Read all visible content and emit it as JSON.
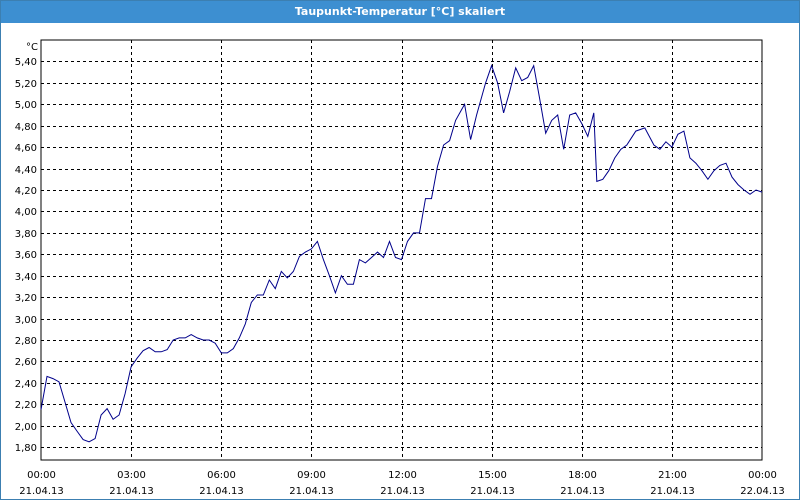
{
  "window": {
    "title": "Taupunkt-Temperatur [°C] skaliert"
  },
  "chart_data": {
    "type": "line",
    "title": "Taupunkt-Temperatur [°C] skaliert",
    "ylabel": "°C",
    "xlabel": "",
    "ylim": [
      1.68,
      5.6
    ],
    "xlim": [
      0,
      24
    ],
    "grid": true,
    "line_color": "#00008b",
    "y_ticks": [
      "1,80",
      "2,00",
      "2,20",
      "2,40",
      "2,60",
      "2,80",
      "3,00",
      "3,20",
      "3,40",
      "3,60",
      "3,80",
      "4,00",
      "4,20",
      "4,40",
      "4,60",
      "4,80",
      "5,00",
      "5,20",
      "5,40"
    ],
    "y_tick_values": [
      1.8,
      2.0,
      2.2,
      2.4,
      2.6,
      2.8,
      3.0,
      3.2,
      3.4,
      3.6,
      3.8,
      4.0,
      4.2,
      4.4,
      4.6,
      4.8,
      5.0,
      5.2,
      5.4
    ],
    "x_ticks": [
      {
        "time": "00:00",
        "date": "21.04.13",
        "hour": 0
      },
      {
        "time": "03:00",
        "date": "21.04.13",
        "hour": 3
      },
      {
        "time": "06:00",
        "date": "21.04.13",
        "hour": 6
      },
      {
        "time": "09:00",
        "date": "21.04.13",
        "hour": 9
      },
      {
        "time": "12:00",
        "date": "21.04.13",
        "hour": 12
      },
      {
        "time": "15:00",
        "date": "21.04.13",
        "hour": 15
      },
      {
        "time": "18:00",
        "date": "21.04.13",
        "hour": 18
      },
      {
        "time": "21:00",
        "date": "21.04.13",
        "hour": 21
      },
      {
        "time": "00:00",
        "date": "22.04.13",
        "hour": 24
      }
    ],
    "series": [
      {
        "values": [
          [
            0.0,
            2.15
          ],
          [
            0.2,
            2.46
          ],
          [
            0.4,
            2.44
          ],
          [
            0.6,
            2.41
          ],
          [
            0.8,
            2.22
          ],
          [
            1.0,
            2.03
          ],
          [
            1.2,
            1.95
          ],
          [
            1.4,
            1.87
          ],
          [
            1.6,
            1.85
          ],
          [
            1.8,
            1.88
          ],
          [
            2.0,
            2.1
          ],
          [
            2.2,
            2.16
          ],
          [
            2.4,
            2.06
          ],
          [
            2.6,
            2.1
          ],
          [
            2.8,
            2.3
          ],
          [
            3.0,
            2.55
          ],
          [
            3.2,
            2.63
          ],
          [
            3.4,
            2.7
          ],
          [
            3.6,
            2.73
          ],
          [
            3.8,
            2.69
          ],
          [
            4.0,
            2.69
          ],
          [
            4.2,
            2.71
          ],
          [
            4.4,
            2.8
          ],
          [
            4.6,
            2.82
          ],
          [
            4.8,
            2.82
          ],
          [
            5.0,
            2.85
          ],
          [
            5.2,
            2.82
          ],
          [
            5.4,
            2.8
          ],
          [
            5.6,
            2.8
          ],
          [
            5.8,
            2.77
          ],
          [
            6.0,
            2.68
          ],
          [
            6.2,
            2.68
          ],
          [
            6.4,
            2.72
          ],
          [
            6.6,
            2.82
          ],
          [
            6.8,
            2.95
          ],
          [
            7.0,
            3.15
          ],
          [
            7.2,
            3.22
          ],
          [
            7.4,
            3.22
          ],
          [
            7.6,
            3.36
          ],
          [
            7.8,
            3.28
          ],
          [
            8.0,
            3.44
          ],
          [
            8.2,
            3.38
          ],
          [
            8.4,
            3.44
          ],
          [
            8.6,
            3.58
          ],
          [
            8.8,
            3.62
          ],
          [
            9.0,
            3.65
          ],
          [
            9.2,
            3.72
          ],
          [
            9.4,
            3.55
          ],
          [
            9.6,
            3.4
          ],
          [
            9.8,
            3.24
          ],
          [
            10.0,
            3.4
          ],
          [
            10.2,
            3.32
          ],
          [
            10.4,
            3.32
          ],
          [
            10.6,
            3.55
          ],
          [
            10.8,
            3.52
          ],
          [
            11.0,
            3.57
          ],
          [
            11.2,
            3.62
          ],
          [
            11.4,
            3.57
          ],
          [
            11.6,
            3.72
          ],
          [
            11.8,
            3.57
          ],
          [
            12.0,
            3.55
          ],
          [
            12.2,
            3.72
          ],
          [
            12.4,
            3.8
          ],
          [
            12.6,
            3.8
          ],
          [
            12.8,
            4.12
          ],
          [
            13.0,
            4.12
          ],
          [
            13.2,
            4.42
          ],
          [
            13.4,
            4.62
          ],
          [
            13.6,
            4.66
          ],
          [
            13.8,
            4.85
          ],
          [
            14.0,
            4.95
          ],
          [
            14.1,
            5.0
          ],
          [
            14.3,
            4.67
          ],
          [
            14.5,
            4.9
          ],
          [
            14.8,
            5.2
          ],
          [
            15.0,
            5.36
          ],
          [
            15.2,
            5.2
          ],
          [
            15.4,
            4.92
          ],
          [
            15.6,
            5.12
          ],
          [
            15.8,
            5.34
          ],
          [
            16.0,
            5.22
          ],
          [
            16.2,
            5.25
          ],
          [
            16.4,
            5.36
          ],
          [
            16.6,
            5.05
          ],
          [
            16.8,
            4.73
          ],
          [
            17.0,
            4.85
          ],
          [
            17.2,
            4.9
          ],
          [
            17.4,
            4.58
          ],
          [
            17.6,
            4.9
          ],
          [
            17.8,
            4.92
          ],
          [
            18.0,
            4.82
          ],
          [
            18.2,
            4.7
          ],
          [
            18.4,
            4.92
          ],
          [
            18.5,
            4.28
          ],
          [
            18.7,
            4.3
          ],
          [
            18.9,
            4.38
          ],
          [
            19.1,
            4.5
          ],
          [
            19.3,
            4.58
          ],
          [
            19.5,
            4.62
          ],
          [
            19.8,
            4.75
          ],
          [
            20.1,
            4.78
          ],
          [
            20.4,
            4.62
          ],
          [
            20.6,
            4.58
          ],
          [
            20.8,
            4.65
          ],
          [
            21.0,
            4.6
          ],
          [
            21.2,
            4.72
          ],
          [
            21.4,
            4.75
          ],
          [
            21.6,
            4.5
          ],
          [
            21.8,
            4.45
          ],
          [
            22.0,
            4.38
          ],
          [
            22.2,
            4.3
          ],
          [
            22.4,
            4.38
          ],
          [
            22.6,
            4.43
          ],
          [
            22.8,
            4.45
          ],
          [
            23.0,
            4.32
          ],
          [
            23.2,
            4.25
          ],
          [
            23.4,
            4.2
          ],
          [
            23.6,
            4.16
          ],
          [
            23.8,
            4.2
          ],
          [
            24.0,
            4.18
          ]
        ]
      }
    ]
  }
}
